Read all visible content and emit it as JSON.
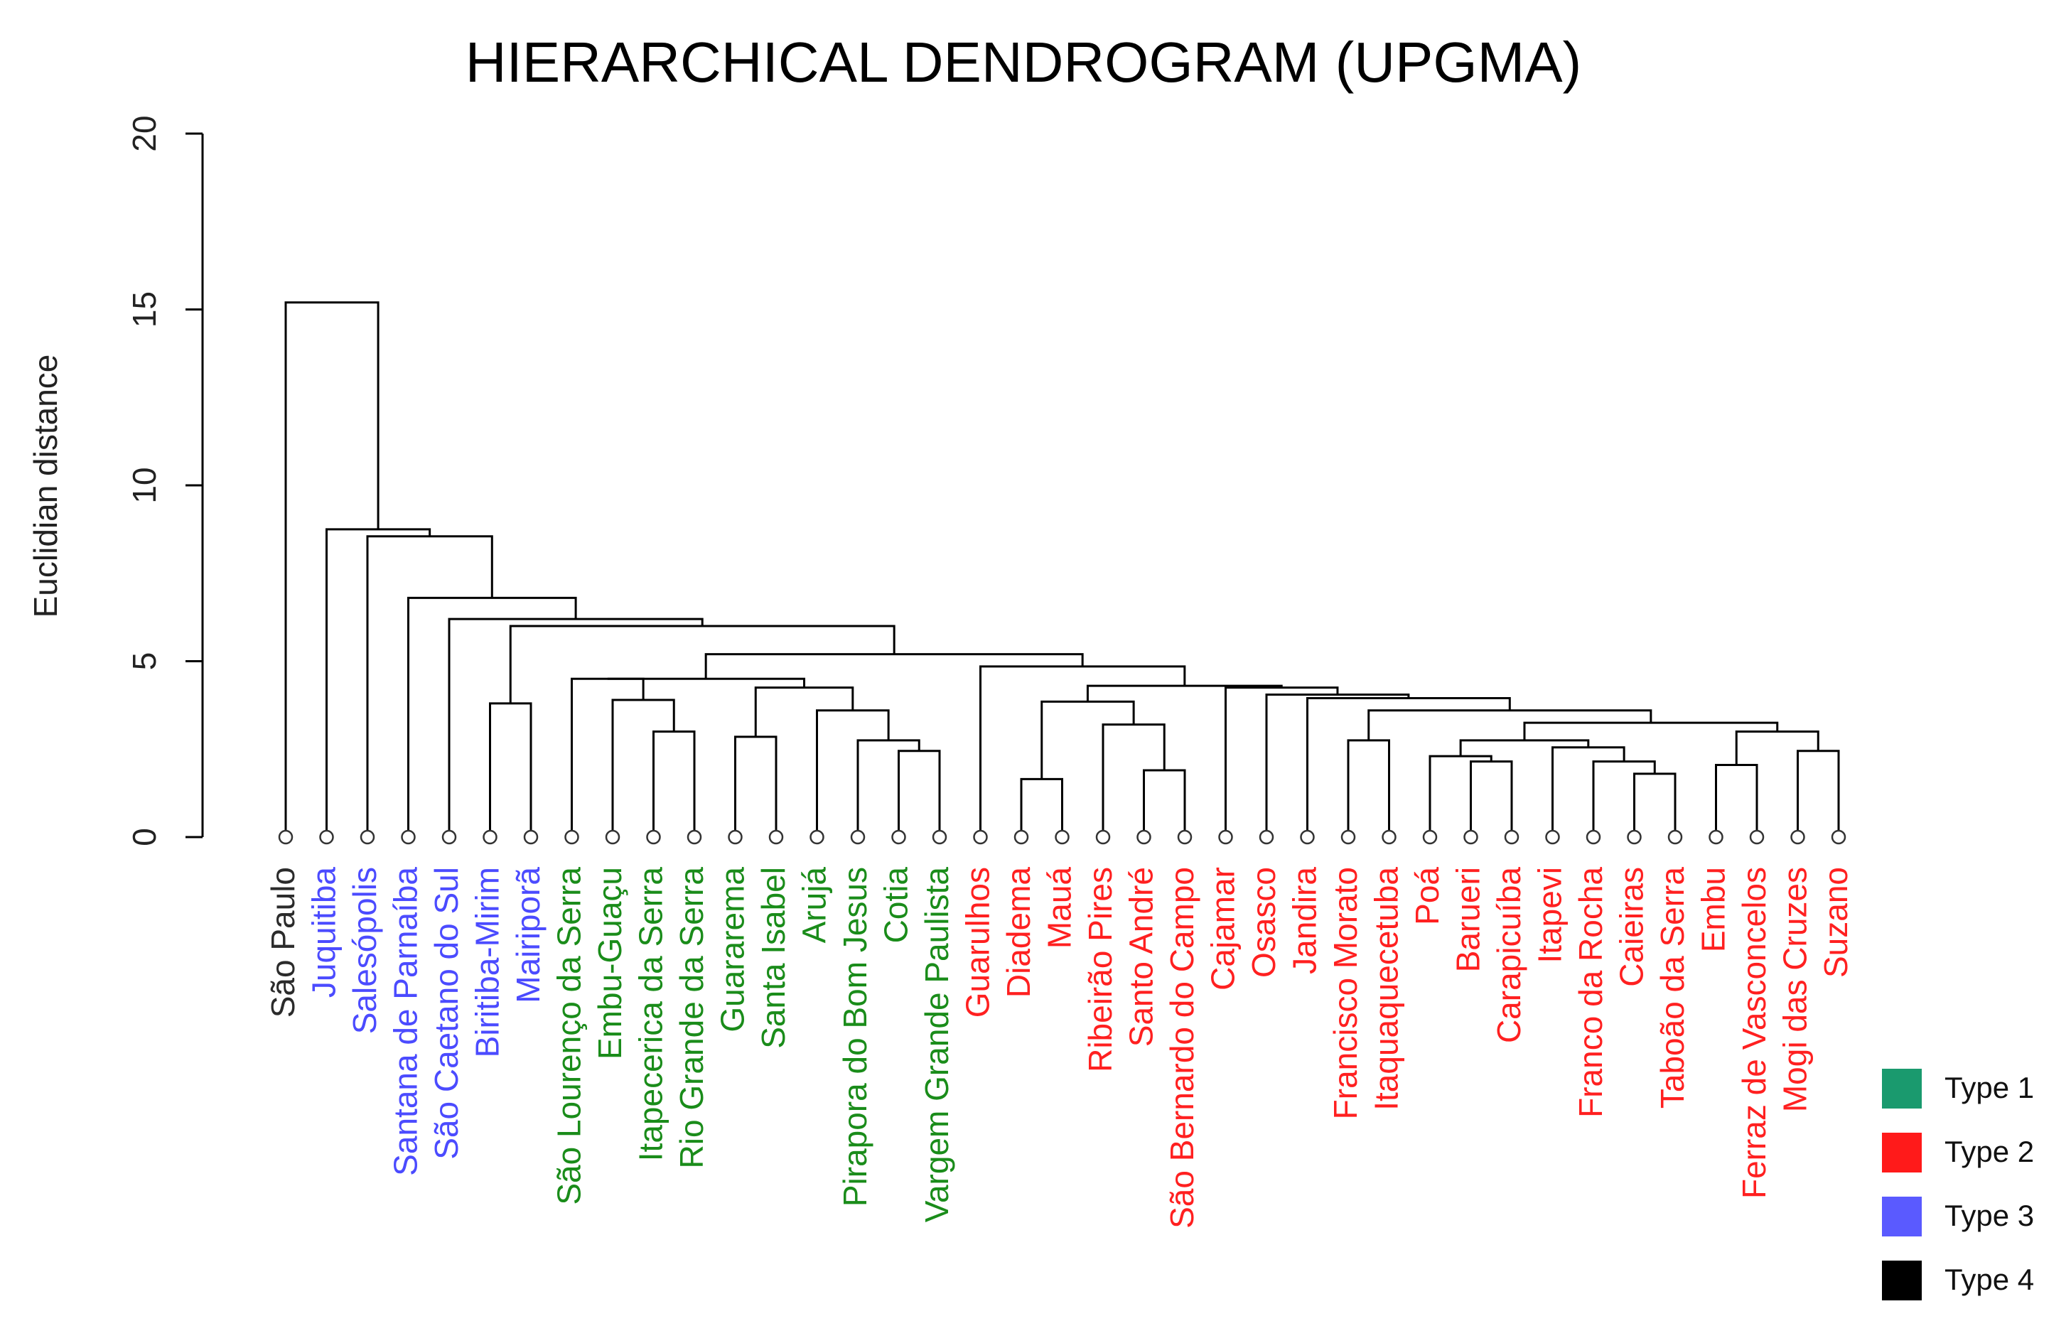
{
  "chart_data": {
    "type": "dendrogram",
    "title": "HIERARCHICAL DENDROGRAM (UPGMA)",
    "ylabel": "Euclidian distance",
    "xlabel": "",
    "ylim": [
      0,
      20
    ],
    "yticks": [
      0,
      5,
      10,
      15,
      20
    ],
    "type_colors": {
      "1": "#1a8c1a",
      "2": "#ff2020",
      "3": "#4b4bff",
      "4": "#2b2b2b"
    },
    "leaves": [
      {
        "name": "São Paulo",
        "type": 4
      },
      {
        "name": "Juquitiba",
        "type": 3
      },
      {
        "name": "Salesópolis",
        "type": 3
      },
      {
        "name": "Santana de Parnaíba",
        "type": 3
      },
      {
        "name": "São Caetano do Sul",
        "type": 3
      },
      {
        "name": "Biritiba-Mirim",
        "type": 3
      },
      {
        "name": "Mairiporã",
        "type": 3
      },
      {
        "name": "São Lourenço da Serra",
        "type": 1
      },
      {
        "name": "Embu-Guaçu",
        "type": 1
      },
      {
        "name": "Itapecerica da Serra",
        "type": 1
      },
      {
        "name": "Rio Grande da Serra",
        "type": 1
      },
      {
        "name": "Guararema",
        "type": 1
      },
      {
        "name": "Santa Isabel",
        "type": 1
      },
      {
        "name": "Arujá",
        "type": 1
      },
      {
        "name": "Pirapora do Bom Jesus",
        "type": 1
      },
      {
        "name": "Cotia",
        "type": 1
      },
      {
        "name": "Vargem Grande Paulista",
        "type": 1
      },
      {
        "name": "Guarulhos",
        "type": 2
      },
      {
        "name": "Diadema",
        "type": 2
      },
      {
        "name": "Mauá",
        "type": 2
      },
      {
        "name": "Ribeirão Pires",
        "type": 2
      },
      {
        "name": "Santo André",
        "type": 2
      },
      {
        "name": "São Bernardo do Campo",
        "type": 2
      },
      {
        "name": "Cajamar",
        "type": 2
      },
      {
        "name": "Osasco",
        "type": 2
      },
      {
        "name": "Jandira",
        "type": 2
      },
      {
        "name": "Francisco Morato",
        "type": 2
      },
      {
        "name": "Itaquaquecetuba",
        "type": 2
      },
      {
        "name": "Poá",
        "type": 2
      },
      {
        "name": "Barueri",
        "type": 2
      },
      {
        "name": "Carapicuíba",
        "type": 2
      },
      {
        "name": "Itapevi",
        "type": 2
      },
      {
        "name": "Franco da Rocha",
        "type": 2
      },
      {
        "name": "Caieiras",
        "type": 2
      },
      {
        "name": "Taboão da Serra",
        "type": 2
      },
      {
        "name": "Embu",
        "type": 2
      },
      {
        "name": "Ferraz de Vasconcelos",
        "type": 2
      },
      {
        "name": "Mogi das Cruzes",
        "type": 2
      },
      {
        "name": "Suzano",
        "type": 2
      }
    ],
    "merges": [
      {
        "id": "m1",
        "a": "Biritiba-Mirim",
        "b": "Mairiporã",
        "h": 3.8
      },
      {
        "id": "m2",
        "a": "Rio Grande da Serra",
        "b": "Itapecerica da Serra",
        "h": 3.0
      },
      {
        "id": "m3",
        "a": "m2",
        "b": "Embu-Guaçu",
        "h": 3.9
      },
      {
        "id": "m4",
        "a": "m3",
        "b": "São Lourenço da Serra",
        "h": 4.5
      },
      {
        "id": "m5",
        "a": "Guararema",
        "b": "Santa Isabel",
        "h": 2.85
      },
      {
        "id": "m6",
        "a": "Cotia",
        "b": "Vargem Grande Paulista",
        "h": 2.45
      },
      {
        "id": "m7",
        "a": "Pirapora do Bom Jesus",
        "b": "m6",
        "h": 2.75
      },
      {
        "id": "m8",
        "a": "Arujá",
        "b": "m7",
        "h": 3.6
      },
      {
        "id": "m9",
        "a": "m5",
        "b": "m8",
        "h": 4.25
      },
      {
        "id": "m10",
        "a": "m4",
        "b": "m9",
        "h": 4.5
      },
      {
        "id": "m11",
        "a": "Diadema",
        "b": "Mauá",
        "h": 1.65
      },
      {
        "id": "m12",
        "a": "São Bernardo do Campo",
        "b": "Santo André",
        "h": 1.9
      },
      {
        "id": "m13",
        "a": "Ribeirão Pires",
        "b": "m12",
        "h": 3.2
      },
      {
        "id": "m14",
        "a": "m11",
        "b": "m13",
        "h": 3.85
      },
      {
        "id": "m15",
        "a": "Francisco Morato",
        "b": "Itaquaquecetuba",
        "h": 2.75
      },
      {
        "id": "m16",
        "a": "Barueri",
        "b": "Carapicuíba",
        "h": 2.15
      },
      {
        "id": "m17",
        "a": "Poá",
        "b": "m16",
        "h": 2.3
      },
      {
        "id": "m18",
        "a": "Taboão da Serra",
        "b": "Caieiras",
        "h": 1.8
      },
      {
        "id": "m19",
        "a": "Franco da Rocha",
        "b": "m18",
        "h": 2.15
      },
      {
        "id": "m20",
        "a": "Itapevi",
        "b": "m19",
        "h": 2.55
      },
      {
        "id": "m21",
        "a": "m17",
        "b": "m20",
        "h": 2.75
      },
      {
        "id": "m22",
        "a": "Embu",
        "b": "Ferraz de Vasconcelos",
        "h": 2.05
      },
      {
        "id": "m23",
        "a": "Mogi das Cruzes",
        "b": "Suzano",
        "h": 2.45
      },
      {
        "id": "m24",
        "a": "m22",
        "b": "m23",
        "h": 3.0
      },
      {
        "id": "m25",
        "a": "m21",
        "b": "m24",
        "h": 3.25
      },
      {
        "id": "m26",
        "a": "m15",
        "b": "m25",
        "h": 3.6
      },
      {
        "id": "m27",
        "a": "Jandira",
        "b": "m26",
        "h": 3.95
      },
      {
        "id": "m28",
        "a": "Osasco",
        "b": "m27",
        "h": 4.05
      },
      {
        "id": "m29",
        "a": "Cajamar",
        "b": "m28",
        "h": 4.25
      },
      {
        "id": "m30",
        "a": "m14",
        "b": "m29",
        "h": 4.3
      },
      {
        "id": "m31",
        "a": "Guarulhos",
        "b": "m30",
        "h": 4.85
      },
      {
        "id": "m32",
        "a": "m10",
        "b": "m31",
        "h": 5.2
      },
      {
        "id": "m33",
        "a": "m1",
        "b": "m32",
        "h": 6.0
      },
      {
        "id": "m34",
        "a": "São Caetano do Sul",
        "b": "m33",
        "h": 6.2
      },
      {
        "id": "m35",
        "a": "Santana de Parnaíba",
        "b": "m34",
        "h": 6.8
      },
      {
        "id": "m36",
        "a": "Salesópolis",
        "b": "m35",
        "h": 8.55
      },
      {
        "id": "m37",
        "a": "Juquitiba",
        "b": "m36",
        "h": 8.75
      },
      {
        "id": "m38",
        "a": "São Paulo",
        "b": "m37",
        "h": 15.2
      }
    ],
    "legend": {
      "position": "bottom-right",
      "entries": [
        {
          "label": "Type 1",
          "color": "#1a9a6e"
        },
        {
          "label": "Type 2",
          "color": "#ff1a1a"
        },
        {
          "label": "Type 3",
          "color": "#5a5aff"
        },
        {
          "label": "Type 4",
          "color": "#000000"
        }
      ]
    }
  }
}
